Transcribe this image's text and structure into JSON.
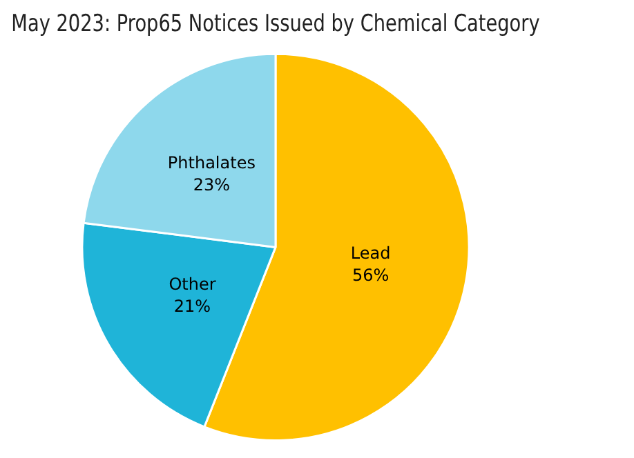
{
  "chart_data": {
    "type": "pie",
    "title": "May 2023: Prop65 Notices Issued by Chemical Category",
    "categories": [
      "Lead",
      "Other",
      "Phthalates"
    ],
    "values": [
      56,
      21,
      23
    ],
    "colors": [
      "#ffc000",
      "#1fb4d8",
      "#8ed8ec"
    ],
    "value_labels": [
      "56%",
      "21%",
      "23%"
    ],
    "legend": false
  }
}
